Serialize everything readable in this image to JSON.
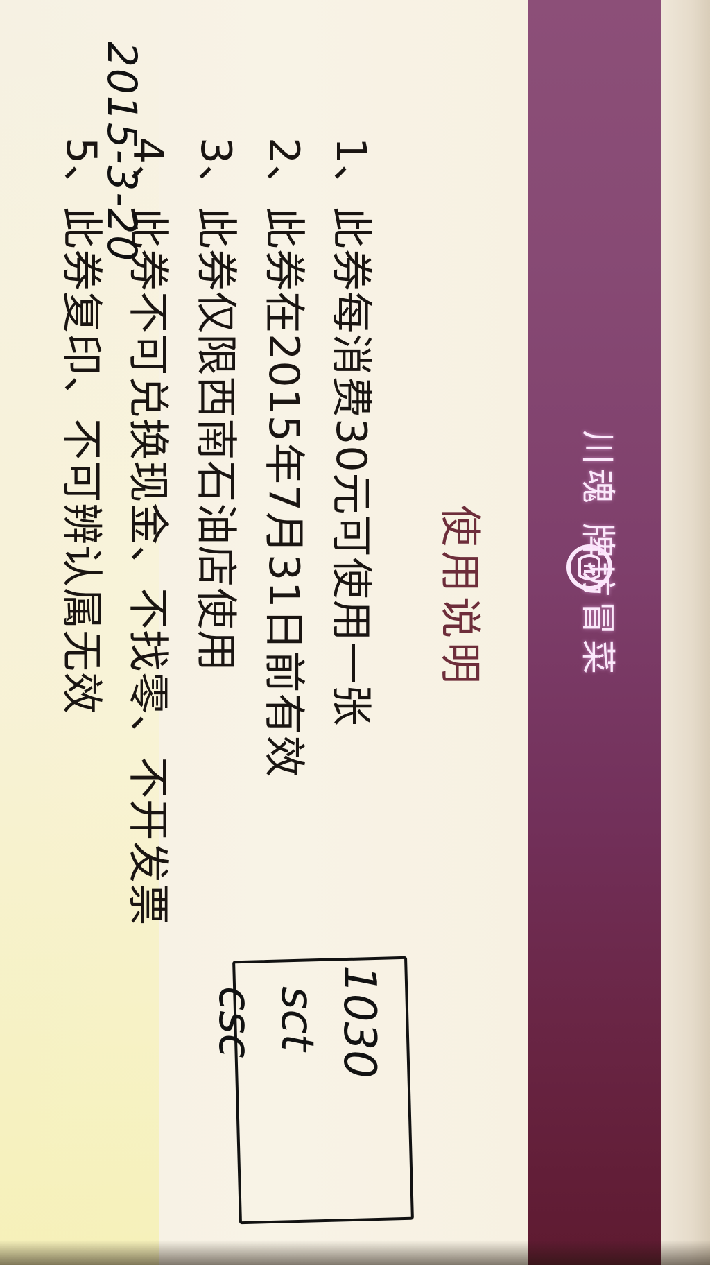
{
  "voucher": {
    "brand": "川魂 牌坊冒菜",
    "title": "使用说明",
    "rules": [
      "1、此券每消费30元可使用一张",
      "2、此券在2015年7月31日前有效",
      "3、此券仅限西南石油店使用",
      "4、此券不可兑换现金、不找零、不开发票",
      "5、此券复印、不可辨认属无效"
    ]
  },
  "handwriting": {
    "date": "2015-3-20",
    "memo": [
      "1030",
      "sct",
      "csc"
    ]
  },
  "colors": {
    "band": "#7e3f6b",
    "heading": "#6d2d3a",
    "paper": "#f7f1e2",
    "ink": "#1a1512"
  }
}
